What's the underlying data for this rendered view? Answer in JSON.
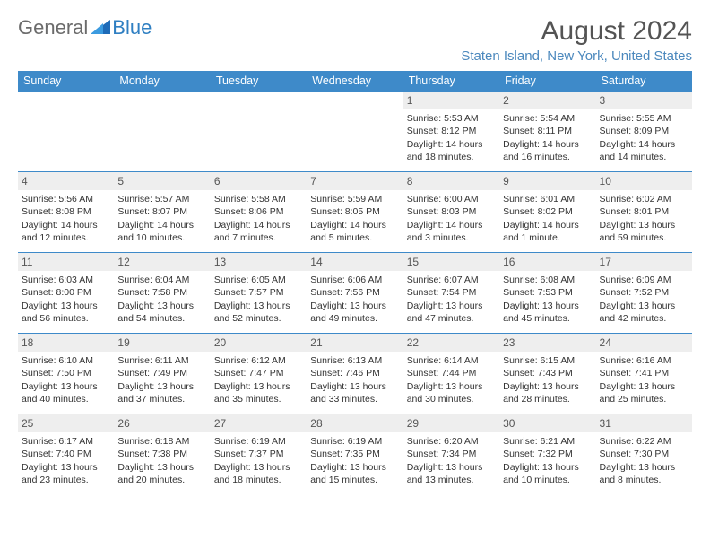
{
  "brand": {
    "part1": "General",
    "part2": "Blue",
    "tri_color": "#1e6bb8"
  },
  "title": "August 2024",
  "location": "Staten Island, New York, United States",
  "colors": {
    "header_bg": "#3e8ac9",
    "header_text": "#ffffff",
    "daynum_bg": "#eeeeee",
    "row_border": "#3e8ac9",
    "location_color": "#4b88bd",
    "title_color": "#545454"
  },
  "day_headers": [
    "Sunday",
    "Monday",
    "Tuesday",
    "Wednesday",
    "Thursday",
    "Friday",
    "Saturday"
  ],
  "weeks": [
    [
      {
        "n": "",
        "sr": "",
        "ss": "",
        "dl": ""
      },
      {
        "n": "",
        "sr": "",
        "ss": "",
        "dl": ""
      },
      {
        "n": "",
        "sr": "",
        "ss": "",
        "dl": ""
      },
      {
        "n": "",
        "sr": "",
        "ss": "",
        "dl": ""
      },
      {
        "n": "1",
        "sr": "Sunrise: 5:53 AM",
        "ss": "Sunset: 8:12 PM",
        "dl": "Daylight: 14 hours and 18 minutes."
      },
      {
        "n": "2",
        "sr": "Sunrise: 5:54 AM",
        "ss": "Sunset: 8:11 PM",
        "dl": "Daylight: 14 hours and 16 minutes."
      },
      {
        "n": "3",
        "sr": "Sunrise: 5:55 AM",
        "ss": "Sunset: 8:09 PM",
        "dl": "Daylight: 14 hours and 14 minutes."
      }
    ],
    [
      {
        "n": "4",
        "sr": "Sunrise: 5:56 AM",
        "ss": "Sunset: 8:08 PM",
        "dl": "Daylight: 14 hours and 12 minutes."
      },
      {
        "n": "5",
        "sr": "Sunrise: 5:57 AM",
        "ss": "Sunset: 8:07 PM",
        "dl": "Daylight: 14 hours and 10 minutes."
      },
      {
        "n": "6",
        "sr": "Sunrise: 5:58 AM",
        "ss": "Sunset: 8:06 PM",
        "dl": "Daylight: 14 hours and 7 minutes."
      },
      {
        "n": "7",
        "sr": "Sunrise: 5:59 AM",
        "ss": "Sunset: 8:05 PM",
        "dl": "Daylight: 14 hours and 5 minutes."
      },
      {
        "n": "8",
        "sr": "Sunrise: 6:00 AM",
        "ss": "Sunset: 8:03 PM",
        "dl": "Daylight: 14 hours and 3 minutes."
      },
      {
        "n": "9",
        "sr": "Sunrise: 6:01 AM",
        "ss": "Sunset: 8:02 PM",
        "dl": "Daylight: 14 hours and 1 minute."
      },
      {
        "n": "10",
        "sr": "Sunrise: 6:02 AM",
        "ss": "Sunset: 8:01 PM",
        "dl": "Daylight: 13 hours and 59 minutes."
      }
    ],
    [
      {
        "n": "11",
        "sr": "Sunrise: 6:03 AM",
        "ss": "Sunset: 8:00 PM",
        "dl": "Daylight: 13 hours and 56 minutes."
      },
      {
        "n": "12",
        "sr": "Sunrise: 6:04 AM",
        "ss": "Sunset: 7:58 PM",
        "dl": "Daylight: 13 hours and 54 minutes."
      },
      {
        "n": "13",
        "sr": "Sunrise: 6:05 AM",
        "ss": "Sunset: 7:57 PM",
        "dl": "Daylight: 13 hours and 52 minutes."
      },
      {
        "n": "14",
        "sr": "Sunrise: 6:06 AM",
        "ss": "Sunset: 7:56 PM",
        "dl": "Daylight: 13 hours and 49 minutes."
      },
      {
        "n": "15",
        "sr": "Sunrise: 6:07 AM",
        "ss": "Sunset: 7:54 PM",
        "dl": "Daylight: 13 hours and 47 minutes."
      },
      {
        "n": "16",
        "sr": "Sunrise: 6:08 AM",
        "ss": "Sunset: 7:53 PM",
        "dl": "Daylight: 13 hours and 45 minutes."
      },
      {
        "n": "17",
        "sr": "Sunrise: 6:09 AM",
        "ss": "Sunset: 7:52 PM",
        "dl": "Daylight: 13 hours and 42 minutes."
      }
    ],
    [
      {
        "n": "18",
        "sr": "Sunrise: 6:10 AM",
        "ss": "Sunset: 7:50 PM",
        "dl": "Daylight: 13 hours and 40 minutes."
      },
      {
        "n": "19",
        "sr": "Sunrise: 6:11 AM",
        "ss": "Sunset: 7:49 PM",
        "dl": "Daylight: 13 hours and 37 minutes."
      },
      {
        "n": "20",
        "sr": "Sunrise: 6:12 AM",
        "ss": "Sunset: 7:47 PM",
        "dl": "Daylight: 13 hours and 35 minutes."
      },
      {
        "n": "21",
        "sr": "Sunrise: 6:13 AM",
        "ss": "Sunset: 7:46 PM",
        "dl": "Daylight: 13 hours and 33 minutes."
      },
      {
        "n": "22",
        "sr": "Sunrise: 6:14 AM",
        "ss": "Sunset: 7:44 PM",
        "dl": "Daylight: 13 hours and 30 minutes."
      },
      {
        "n": "23",
        "sr": "Sunrise: 6:15 AM",
        "ss": "Sunset: 7:43 PM",
        "dl": "Daylight: 13 hours and 28 minutes."
      },
      {
        "n": "24",
        "sr": "Sunrise: 6:16 AM",
        "ss": "Sunset: 7:41 PM",
        "dl": "Daylight: 13 hours and 25 minutes."
      }
    ],
    [
      {
        "n": "25",
        "sr": "Sunrise: 6:17 AM",
        "ss": "Sunset: 7:40 PM",
        "dl": "Daylight: 13 hours and 23 minutes."
      },
      {
        "n": "26",
        "sr": "Sunrise: 6:18 AM",
        "ss": "Sunset: 7:38 PM",
        "dl": "Daylight: 13 hours and 20 minutes."
      },
      {
        "n": "27",
        "sr": "Sunrise: 6:19 AM",
        "ss": "Sunset: 7:37 PM",
        "dl": "Daylight: 13 hours and 18 minutes."
      },
      {
        "n": "28",
        "sr": "Sunrise: 6:19 AM",
        "ss": "Sunset: 7:35 PM",
        "dl": "Daylight: 13 hours and 15 minutes."
      },
      {
        "n": "29",
        "sr": "Sunrise: 6:20 AM",
        "ss": "Sunset: 7:34 PM",
        "dl": "Daylight: 13 hours and 13 minutes."
      },
      {
        "n": "30",
        "sr": "Sunrise: 6:21 AM",
        "ss": "Sunset: 7:32 PM",
        "dl": "Daylight: 13 hours and 10 minutes."
      },
      {
        "n": "31",
        "sr": "Sunrise: 6:22 AM",
        "ss": "Sunset: 7:30 PM",
        "dl": "Daylight: 13 hours and 8 minutes."
      }
    ]
  ]
}
